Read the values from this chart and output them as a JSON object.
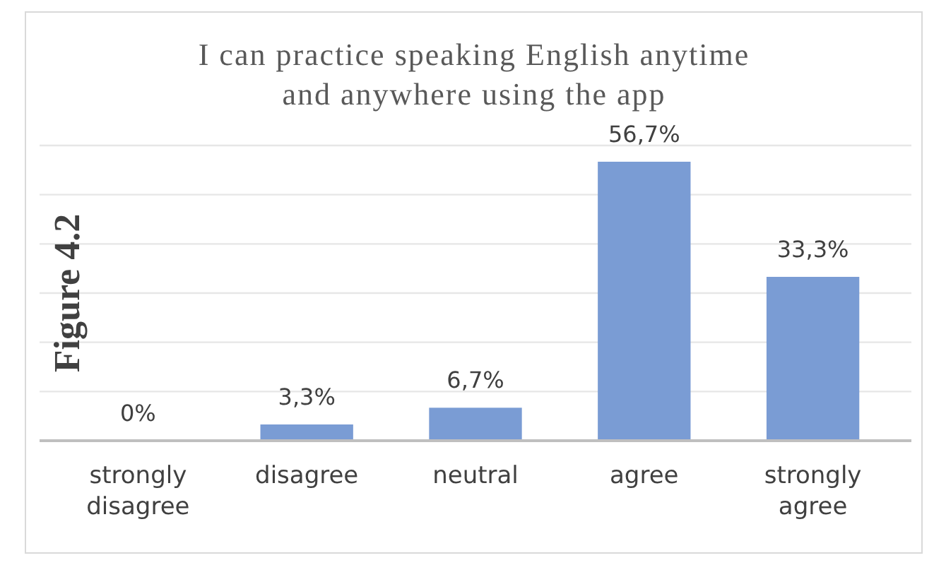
{
  "chart_data": {
    "type": "bar",
    "title": "I can practice speaking English anytime and anywhere using the app",
    "categories": [
      "strongly disagree",
      "disagree",
      "neutral",
      "agree",
      "strongly agree"
    ],
    "values": [
      0,
      3.3,
      6.7,
      56.7,
      33.3
    ],
    "value_labels": [
      "0%",
      "3,3%",
      "6,7%",
      "56,7%",
      "33,3%"
    ],
    "color": "#7a9cd4",
    "ylim": [
      0,
      60
    ],
    "yticks": [
      {
        "value": 0,
        "label": null
      },
      {
        "value": 10,
        "label": null
      },
      {
        "value": 20,
        "label": null
      },
      {
        "value": 30,
        "label": null
      },
      {
        "value": 40,
        "label": null
      },
      {
        "value": 50,
        "label": null
      },
      {
        "value": 60,
        "label": null
      }
    ],
    "grid": "y",
    "tick_labels": "x",
    "annotations": [
      "Figure 4.2"
    ]
  }
}
